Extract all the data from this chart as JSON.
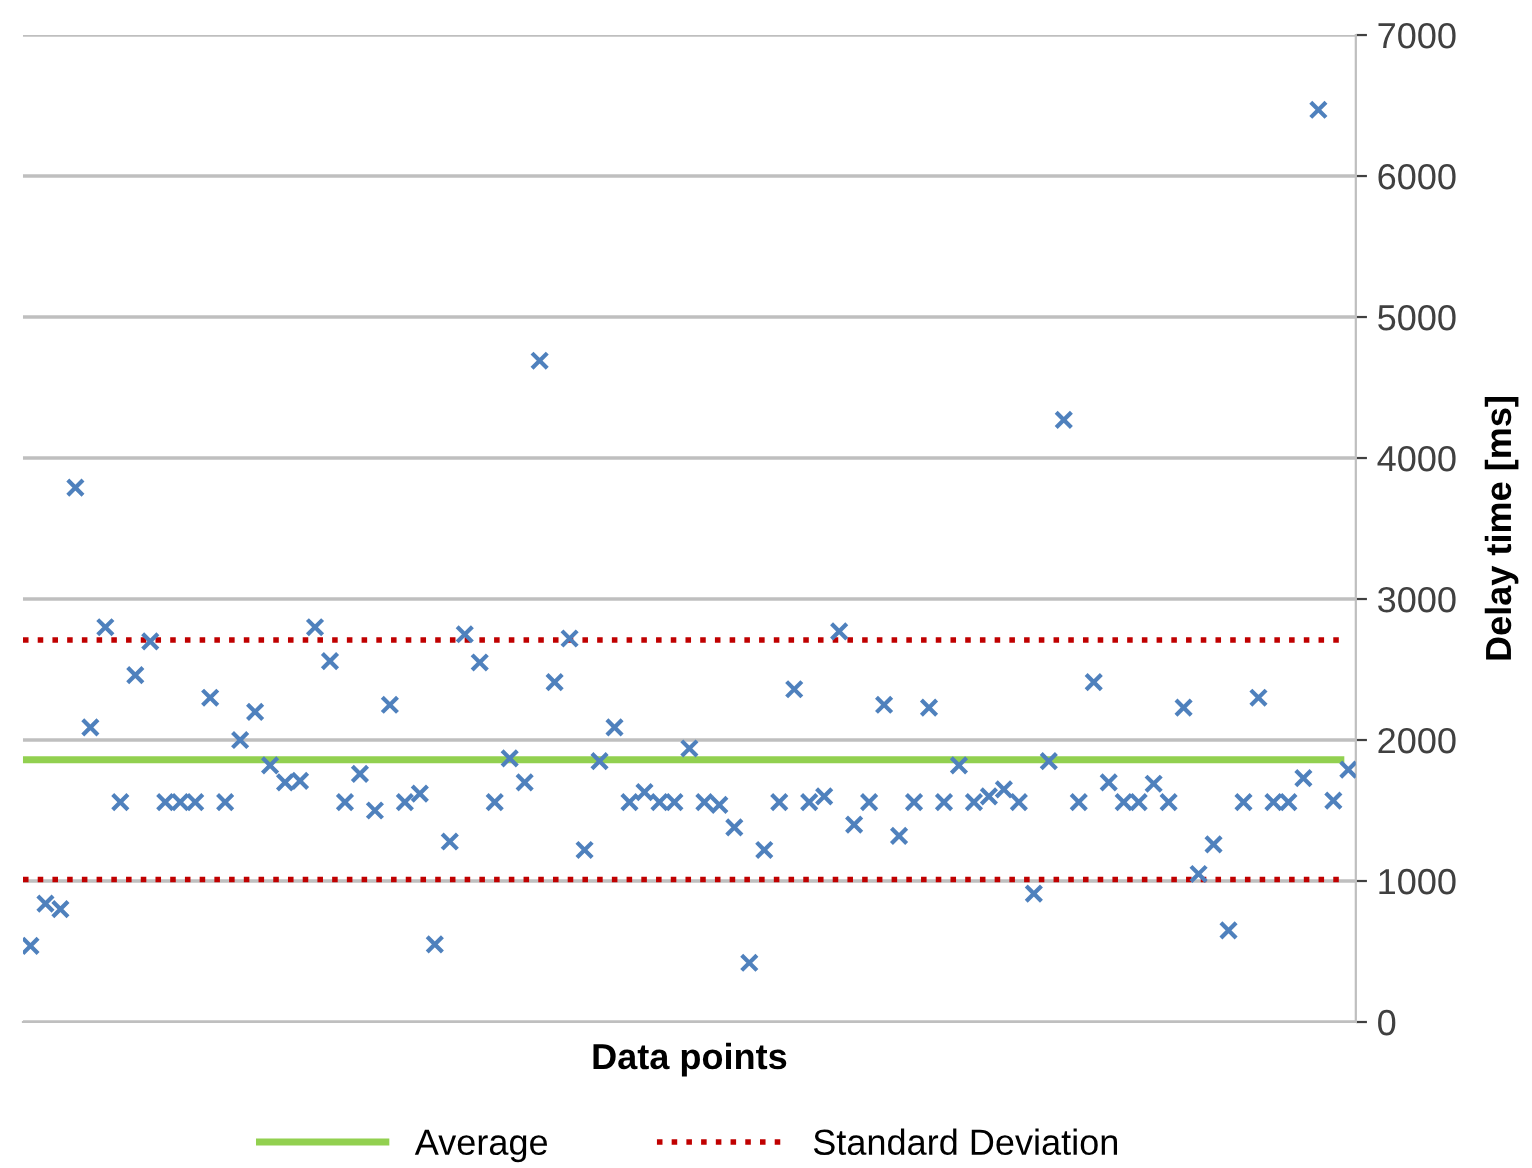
{
  "chart_data": {
    "type": "scatter",
    "xlabel": "Data points",
    "ylabel": "Delay time [ms]",
    "categories": [
      null,
      null,
      null,
      null,
      null,
      null,
      null,
      null,
      null,
      null,
      null,
      null,
      null,
      null,
      null,
      null,
      null,
      null,
      null,
      null,
      null,
      null,
      null,
      null,
      null,
      null,
      null,
      null,
      null,
      null,
      null,
      null,
      null,
      null,
      null,
      null,
      null,
      null,
      null,
      null,
      null,
      null,
      null,
      null,
      null,
      null,
      null,
      null,
      null,
      null,
      null,
      null,
      null,
      null,
      null,
      null,
      null,
      null,
      null,
      null,
      null,
      null,
      null,
      null,
      null,
      null,
      null,
      null,
      null,
      null,
      null,
      null,
      null,
      null,
      null,
      null,
      null,
      null,
      null,
      null,
      null,
      null,
      null,
      null,
      null,
      null,
      null,
      null,
      null
    ],
    "series": [
      {
        "color": "#4f81bd",
        "values": [
          540,
          840,
          800,
          3790,
          2090,
          2800,
          1560,
          2460,
          2700,
          1560,
          1560,
          1560,
          2300,
          1560,
          2000,
          2200,
          1820,
          1700,
          1710,
          2800,
          2560,
          1560,
          1760,
          1500,
          2250,
          1560,
          1620,
          550,
          1280,
          2750,
          2550,
          1560,
          1870,
          1700,
          4690,
          2410,
          2720,
          1220,
          1850,
          2090,
          1560,
          1630,
          1560,
          1560,
          1940,
          1560,
          1540,
          1380,
          420,
          1220,
          1560,
          2360,
          1560,
          1600,
          2770,
          1400,
          1560,
          2250,
          1320,
          1560,
          2230,
          1560,
          1820,
          1560,
          1600,
          1650,
          1560,
          910,
          1850,
          4270,
          1560,
          2410,
          1700,
          1560,
          1560,
          1690,
          1560,
          2230,
          1050,
          1260,
          650,
          1560,
          2300,
          1560,
          1560,
          1730,
          6470,
          1570,
          1790
        ]
      }
    ],
    "marker": "cross",
    "ylim": [
      0,
      7000
    ],
    "yticks": [
      0,
      1000,
      2000,
      3000,
      4000,
      5000,
      6000,
      7000
    ],
    "grid": "y",
    "legend": "bottom",
    "ref_lines": [
      {
        "axis": "y",
        "value": 1860,
        "label": "Average",
        "color": "#92d050",
        "line_style": "solid"
      },
      {
        "axis": "y",
        "value": 2710,
        "label": "Standard Deviation",
        "color": "#c00000",
        "line_style": "dotted"
      },
      {
        "axis": "y",
        "value": 1010,
        "color": "#c00000",
        "line_style": "dotted"
      }
    ]
  }
}
